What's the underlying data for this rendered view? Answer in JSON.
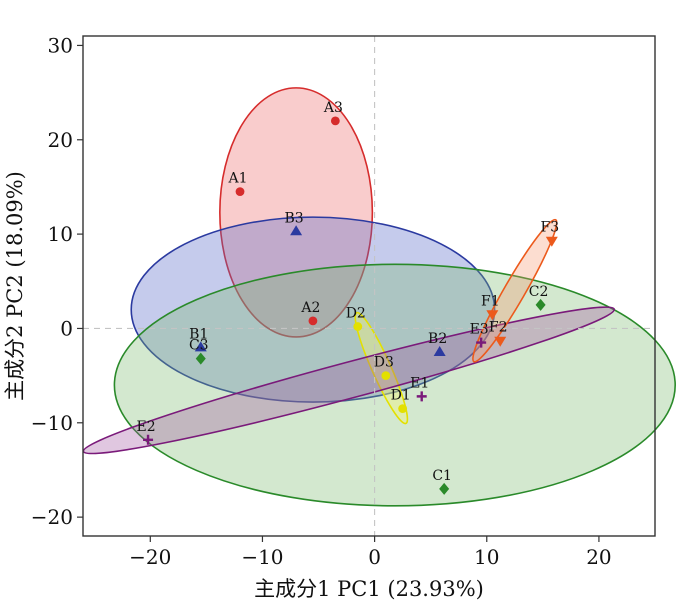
{
  "chart_data": {
    "type": "scatter",
    "xlabel": "主成分1 PC1 (23.93%)",
    "ylabel": "主成分2 PC2 (18.09%)",
    "xlim": [
      -26,
      25
    ],
    "ylim": [
      -22,
      31
    ],
    "xticks": [
      -20,
      -10,
      0,
      10,
      20
    ],
    "yticks": [
      -20,
      -10,
      0,
      10,
      20,
      30
    ],
    "reference_lines": {
      "x": 0,
      "y": 0,
      "style": "dashed"
    },
    "grid": false,
    "series": [
      {
        "group": "A",
        "marker": "circle",
        "color": "#d62c2c",
        "fill": "rgba(238,120,120,0.38)",
        "points": [
          {
            "label": "A1",
            "x": -12.0,
            "y": 14.5
          },
          {
            "label": "A2",
            "x": -5.5,
            "y": 0.8
          },
          {
            "label": "A3",
            "x": -3.5,
            "y": 22.0
          }
        ],
        "ellipse": {
          "cx": -7.0,
          "cy": 12.3,
          "rx": 6.8,
          "ry": 13.2,
          "angle": 0
        }
      },
      {
        "group": "B",
        "marker": "triangle-up",
        "color": "#2b3aa0",
        "fill": "rgba(90,105,200,0.35)",
        "points": [
          {
            "label": "B1",
            "x": -15.5,
            "y": -2.0
          },
          {
            "label": "B2",
            "x": 5.8,
            "y": -2.5
          },
          {
            "label": "B3",
            "x": -7.0,
            "y": 10.3
          }
        ],
        "ellipse": {
          "cx": -5.5,
          "cy": 2.0,
          "rx": 16.2,
          "ry": 9.8,
          "angle": 0
        }
      },
      {
        "group": "C",
        "marker": "diamond",
        "color": "#2a8a2a",
        "fill": "rgba(120,185,110,0.33)",
        "points": [
          {
            "label": "C1",
            "x": 6.2,
            "y": -17.0
          },
          {
            "label": "C2",
            "x": 14.8,
            "y": 2.5
          },
          {
            "label": "C3",
            "x": -15.5,
            "y": -3.2
          }
        ],
        "ellipse": {
          "cx": 1.8,
          "cy": -6.0,
          "rx": 25.0,
          "ry": 12.8,
          "angle": 0
        }
      },
      {
        "group": "D",
        "marker": "circle",
        "color": "#e3e000",
        "fill": "rgba(245,245,120,0.40)",
        "points": [
          {
            "label": "D1",
            "x": 2.5,
            "y": -8.5
          },
          {
            "label": "D2",
            "x": -1.5,
            "y": 0.2
          },
          {
            "label": "D3",
            "x": 1.0,
            "y": -5.0
          }
        ],
        "ellipse": {
          "cx": 0.6,
          "cy": -4.2,
          "rx": 5.4,
          "ry": 1.0,
          "angle": -66
        }
      },
      {
        "group": "E",
        "marker": "plus",
        "color": "#7a1a7a",
        "fill": "rgba(160,80,160,0.32)",
        "points": [
          {
            "label": "E1",
            "x": 4.2,
            "y": -7.2
          },
          {
            "label": "E2",
            "x": -20.2,
            "y": -11.8
          },
          {
            "label": "E3",
            "x": 9.5,
            "y": -1.5
          }
        ],
        "ellipse": {
          "cx": -2.3,
          "cy": -5.5,
          "rx": 24.5,
          "ry": 1.9,
          "angle": 15
        }
      },
      {
        "group": "F",
        "marker": "triangle-down",
        "color": "#ec5a1c",
        "fill": "rgba(245,150,110,0.32)",
        "points": [
          {
            "label": "F1",
            "x": 10.5,
            "y": 1.5
          },
          {
            "label": "F2",
            "x": 11.2,
            "y": -1.3
          },
          {
            "label": "F3",
            "x": 15.8,
            "y": 9.3
          }
        ],
        "ellipse": {
          "cx": 12.5,
          "cy": 4.0,
          "rx": 7.3,
          "ry": 1.1,
          "angle": 60
        }
      }
    ]
  }
}
